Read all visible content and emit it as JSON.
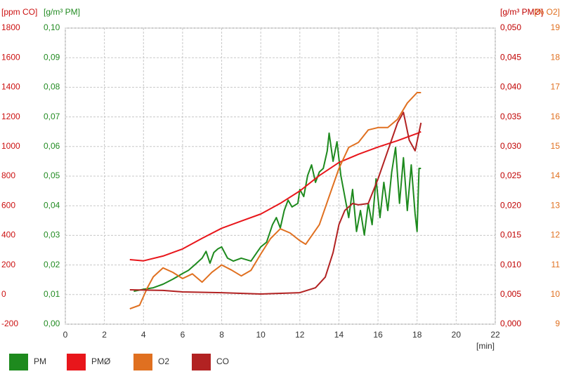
{
  "chart_data": {
    "type": "line",
    "x_label": "[min]",
    "xlim": [
      0,
      22
    ],
    "xticks": [
      0,
      2,
      4,
      6,
      8,
      10,
      12,
      14,
      16,
      18,
      20,
      22
    ],
    "grid": true,
    "legend": "bottom-left",
    "axes": [
      {
        "label": "[ppm CO]",
        "color": "#cc1111",
        "side": "left",
        "lim": [
          -200,
          1800
        ],
        "ticks": [
          -200,
          0,
          200,
          400,
          600,
          800,
          1000,
          1200,
          1400,
          1600,
          1800
        ]
      },
      {
        "label": "[g/m³ PM]",
        "color": "#228b22",
        "side": "left",
        "lim": [
          0,
          0.1
        ],
        "ticks": [
          {
            "value": 0,
            "label": "0,00"
          },
          {
            "value": 0.01,
            "label": "0,01"
          },
          {
            "value": 0.02,
            "label": "0,02"
          },
          {
            "value": 0.03,
            "label": "0,03"
          },
          {
            "value": 0.04,
            "label": "0,04"
          },
          {
            "value": 0.05,
            "label": "0,05"
          },
          {
            "value": 0.06,
            "label": "0,06"
          },
          {
            "value": 0.07,
            "label": "0,07"
          },
          {
            "value": 0.08,
            "label": "0,08"
          },
          {
            "value": 0.09,
            "label": "0,09"
          },
          {
            "value": 0.1,
            "label": "0,10"
          }
        ]
      },
      {
        "label": "[g/m³ PMØ]",
        "color": "#c00000",
        "side": "right",
        "lim": [
          0,
          0.05
        ],
        "ticks": [
          {
            "value": 0,
            "label": "0,000"
          },
          {
            "value": 0.005,
            "label": "0,005"
          },
          {
            "value": 0.01,
            "label": "0,010"
          },
          {
            "value": 0.015,
            "label": "0,015"
          },
          {
            "value": 0.02,
            "label": "0,020"
          },
          {
            "value": 0.025,
            "label": "0,025"
          },
          {
            "value": 0.03,
            "label": "0,030"
          },
          {
            "value": 0.035,
            "label": "0,035"
          },
          {
            "value": 0.04,
            "label": "0,040"
          },
          {
            "value": 0.045,
            "label": "0,045"
          },
          {
            "value": 0.05,
            "label": "0,050"
          }
        ]
      },
      {
        "label": "[% O2]",
        "color": "#e07020",
        "side": "right",
        "lim": [
          9,
          19
        ],
        "ticks": [
          9,
          10,
          11,
          12,
          13,
          14,
          15,
          16,
          17,
          18,
          19
        ]
      }
    ],
    "series": [
      {
        "name": "PM",
        "color": "#1e8a1e",
        "axis": 1,
        "x": [
          3.5,
          4,
          4.5,
          5,
          5.5,
          6,
          6.3,
          6.6,
          7,
          7.2,
          7.4,
          7.6,
          7.8,
          8,
          8.3,
          8.6,
          9,
          9.5,
          9.8,
          10,
          10.3,
          10.6,
          10.8,
          11,
          11.2,
          11.4,
          11.6,
          11.9,
          12,
          12.2,
          12.4,
          12.6,
          12.8,
          13,
          13.2,
          13.4,
          13.5,
          13.7,
          13.9,
          14.1,
          14.3,
          14.5,
          14.7,
          14.9,
          15.1,
          15.3,
          15.5,
          15.7,
          15.9,
          16.1,
          16.3,
          16.5,
          16.7,
          16.9,
          17.1,
          17.3,
          17.5,
          17.7,
          17.9,
          18,
          18.1,
          18.2
        ],
        "values": [
          0.0111,
          0.0118,
          0.0123,
          0.0135,
          0.0152,
          0.0171,
          0.0182,
          0.0199,
          0.0223,
          0.0246,
          0.0206,
          0.0242,
          0.0254,
          0.0261,
          0.0223,
          0.0213,
          0.0223,
          0.0213,
          0.0242,
          0.0261,
          0.0277,
          0.0336,
          0.036,
          0.0325,
          0.0384,
          0.0419,
          0.0396,
          0.0408,
          0.0455,
          0.0431,
          0.0502,
          0.0538,
          0.0479,
          0.0514,
          0.0526,
          0.0585,
          0.0645,
          0.055,
          0.0616,
          0.0502,
          0.0431,
          0.036,
          0.0455,
          0.0313,
          0.0384,
          0.0301,
          0.0408,
          0.0336,
          0.0491,
          0.036,
          0.0479,
          0.0384,
          0.0514,
          0.0597,
          0.0408,
          0.0562,
          0.0384,
          0.0538,
          0.0372,
          0.0313,
          0.0526,
          0.0526
        ]
      },
      {
        "name": "PMØ",
        "color": "#e8161b",
        "axis": 2,
        "x": [
          3.3,
          4,
          5,
          6,
          7,
          8,
          9,
          10,
          11,
          12,
          13,
          14,
          15,
          16,
          17,
          18,
          18.2
        ],
        "values": [
          0.0109,
          0.0107,
          0.0115,
          0.0127,
          0.0145,
          0.0162,
          0.0174,
          0.0186,
          0.0204,
          0.0225,
          0.0251,
          0.0273,
          0.0287,
          0.0299,
          0.031,
          0.0322,
          0.0325
        ]
      },
      {
        "name": "O2",
        "color": "#e07020",
        "axis": 3,
        "x": [
          3.3,
          3.8,
          4.2,
          4.5,
          5,
          5.5,
          6,
          6.5,
          7,
          7.5,
          8,
          8.5,
          9,
          9.5,
          10,
          10.5,
          11,
          11.5,
          12,
          12.3,
          13,
          13.5,
          14,
          14.5,
          15,
          15.5,
          16,
          16.5,
          17,
          17.5,
          18,
          18.2
        ],
        "values": [
          9.52,
          9.64,
          10.23,
          10.6,
          10.9,
          10.75,
          10.54,
          10.7,
          10.42,
          10.75,
          11.0,
          10.83,
          10.63,
          10.82,
          11.37,
          11.89,
          12.22,
          12.08,
          11.82,
          11.7,
          12.36,
          13.31,
          14.26,
          14.97,
          15.14,
          15.56,
          15.64,
          15.64,
          15.92,
          16.47,
          16.82,
          16.82
        ]
      },
      {
        "name": "CO",
        "color": "#b22222",
        "axis": 0,
        "x": [
          3.3,
          5,
          6,
          8,
          10,
          12,
          12.8,
          13.3,
          13.7,
          14,
          14.3,
          14.7,
          15,
          15.5,
          16,
          16.5,
          17,
          17.3,
          17.6,
          17.9,
          18.2
        ],
        "values": [
          32,
          28,
          18,
          13,
          4,
          13,
          46,
          118,
          283,
          473,
          568,
          615,
          606,
          615,
          781,
          971,
          1160,
          1231,
          1042,
          971,
          1160
        ]
      }
    ]
  }
}
